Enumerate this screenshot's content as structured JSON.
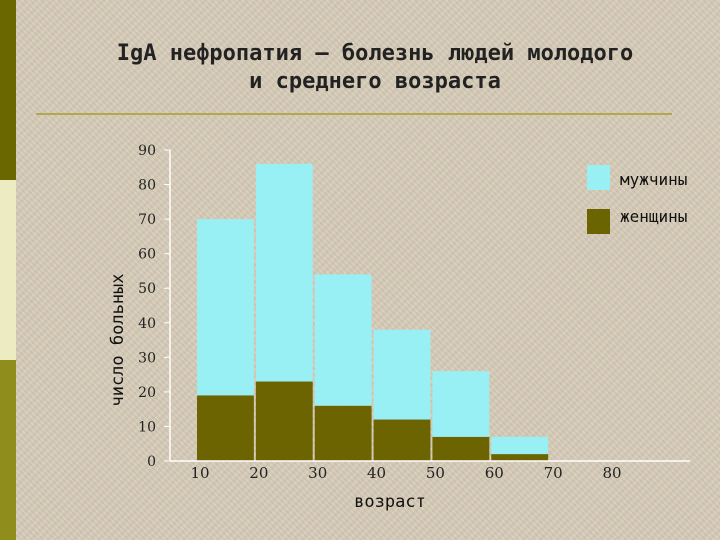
{
  "title": {
    "line1": "IgA нефропатия – болезнь людей молодого",
    "line2": "и среднего возраста"
  },
  "colors": {
    "side_top": "#6b6700",
    "side_mid": "#ecebc2",
    "side_bot": "#8f8d1c",
    "rule": "#b3a84d",
    "men": "#99f0f4",
    "women": "#6b6400",
    "axis": "#ffffff"
  },
  "chart_data": {
    "type": "bar",
    "stacked": true,
    "xlabel": "возраст",
    "ylabel": "число больных",
    "ylim": [
      0,
      90
    ],
    "y_ticks": [
      0,
      10,
      20,
      30,
      40,
      50,
      60,
      70,
      80,
      90
    ],
    "x_ticks": [
      "10",
      "20",
      "30",
      "40",
      "50",
      "60",
      "70",
      "80"
    ],
    "x_tick_values": [
      10,
      20,
      30,
      40,
      50,
      60,
      70,
      80
    ],
    "xlim": [
      10,
      80
    ],
    "grid": false,
    "legend_position": "top-right",
    "bins": [
      {
        "from": 10,
        "to": 20
      },
      {
        "from": 20,
        "to": 30
      },
      {
        "from": 30,
        "to": 40
      },
      {
        "from": 40,
        "to": 50
      },
      {
        "from": 50,
        "to": 60
      },
      {
        "from": 60,
        "to": 70
      }
    ],
    "series": [
      {
        "name": "женщины",
        "color": "#6b6400",
        "values": [
          19,
          23,
          16,
          12,
          7,
          2
        ]
      },
      {
        "name": "мужчины",
        "color": "#99f0f4",
        "values": [
          51,
          63,
          38,
          26,
          19,
          5
        ]
      }
    ],
    "legend": [
      "мужчины",
      "женщины"
    ]
  }
}
